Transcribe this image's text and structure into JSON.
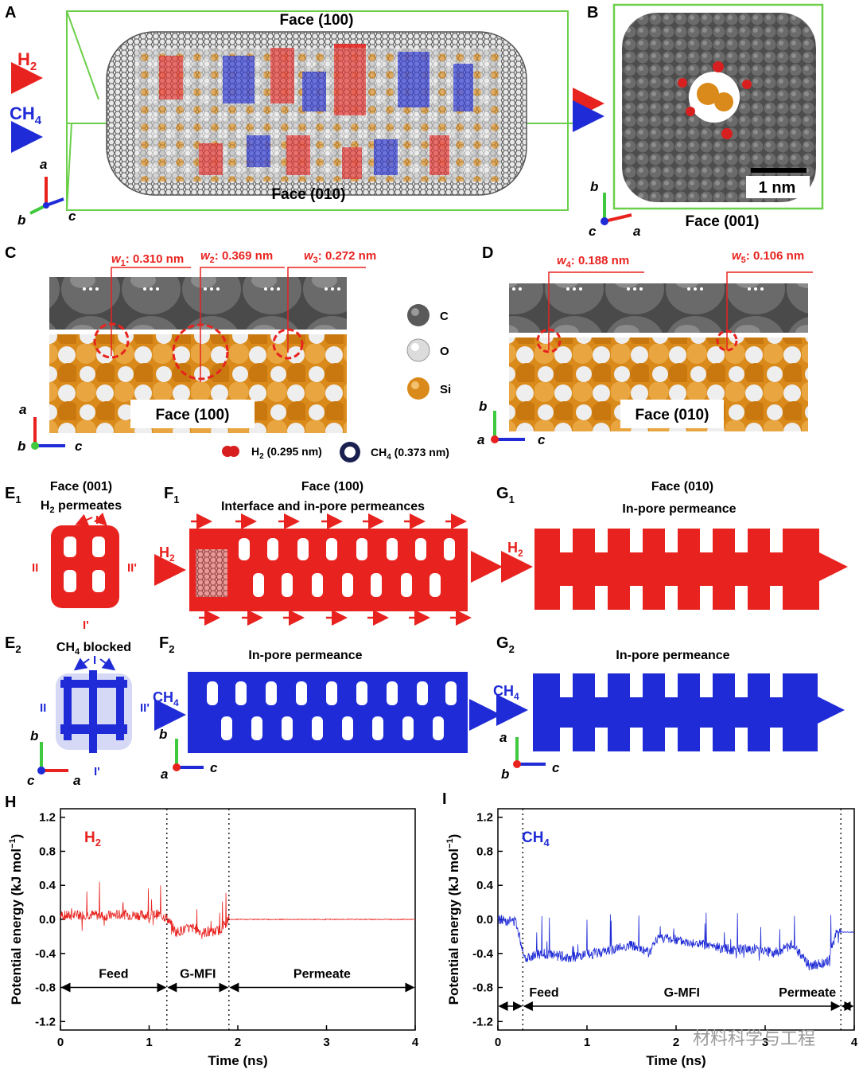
{
  "panels": {
    "A": "A",
    "B": "B",
    "C": "C",
    "D": "D",
    "E1": "E",
    "E1s": "1",
    "F1": "F",
    "F1s": "1",
    "G1": "G",
    "G1s": "1",
    "E2": "E",
    "E2s": "2",
    "F2": "F",
    "F2s": "2",
    "G2": "G",
    "G2s": "2",
    "H": "H",
    "I": "I"
  },
  "panelA": {
    "face_top": "Face (100)",
    "face_bottom": "Face (010)",
    "h2": "H",
    "h2_sub": "2",
    "ch4": "CH",
    "ch4_sub": "4",
    "axis_a": "a",
    "axis_b": "b",
    "axis_c": "c"
  },
  "panelB": {
    "scale": "1 nm",
    "face": "Face (001)",
    "axis_b": "b",
    "axis_c": "c",
    "axis_a": "a"
  },
  "panelC": {
    "w1_var": "w",
    "w1_sub": "1",
    "w1_val": ": 0.310 nm",
    "w2_var": "w",
    "w2_sub": "2",
    "w2_val": ": 0.369 nm",
    "w3_var": "w",
    "w3_sub": "3",
    "w3_val": ": 0.272 nm",
    "face": "Face (100)",
    "axis_a": "a",
    "axis_b": "b",
    "axis_c": "c"
  },
  "legend": {
    "c": "C",
    "o": "O",
    "si": "Si",
    "h2": "H",
    "h2_sub": "2",
    "h2_size": " (0.295 nm)",
    "ch4": "CH",
    "ch4_sub": "4",
    "ch4_size": " (0.373 nm)"
  },
  "panelD": {
    "w4_var": "w",
    "w4_sub": "4",
    "w4_val": ": 0.188 nm",
    "w5_var": "w",
    "w5_sub": "5",
    "w5_val": ": 0.106 nm",
    "face": "Face (010)",
    "axis_b": "b",
    "axis_a": "a",
    "axis_c": "c"
  },
  "panelE1": {
    "face": "Face (001)",
    "title": "H",
    "title_sub": "2",
    "title_rest": " permeates",
    "I": "I",
    "II": "II",
    "IIp": "II'",
    "Ip": "I'"
  },
  "panelF1": {
    "face": "Face (100)",
    "title": "Interface and in-pore permeances",
    "h2": "H",
    "h2_sub": "2"
  },
  "panelG1": {
    "face": "Face (010)",
    "title": "In-pore permeance",
    "h2": "H",
    "h2_sub": "2"
  },
  "panelE2": {
    "title": "CH",
    "title_sub": "4",
    "title_rest": " blocked",
    "I": "I",
    "II": "II",
    "IIp": "II'",
    "Ip": "I'",
    "axis_b": "b",
    "axis_c": "c",
    "axis_a": "a"
  },
  "panelF2": {
    "title": "In-pore permeance",
    "ch4": "CH",
    "ch4_sub": "4",
    "axis_b": "b",
    "axis_a": "a",
    "axis_c": "c"
  },
  "panelG2": {
    "title": "In-pore permeance",
    "ch4": "CH",
    "ch4_sub": "4",
    "axis_a": "a",
    "axis_b": "b",
    "axis_c": "c"
  },
  "watermark": "材料科学与工程",
  "colors": {
    "h2": "#e8231f",
    "ch4": "#1f2bd6",
    "graphene": "#5a5a5a",
    "si": "#d98a1a",
    "o": "#e8e8e8",
    "box": "#6ccf4a"
  },
  "chart_data": [
    {
      "type": "line",
      "panel": "H",
      "series": [
        {
          "name": "H2",
          "x": [
            0,
            0.1,
            0.2,
            0.3,
            0.4,
            0.5,
            0.6,
            0.7,
            0.8,
            0.9,
            1.0,
            1.1,
            1.2,
            1.3,
            1.4,
            1.5,
            1.6,
            1.7,
            1.8,
            1.9,
            2.0,
            2.5,
            2.7,
            3.0,
            3.5,
            4.0
          ],
          "y": [
            0.05,
            0.04,
            0.05,
            0.06,
            0.05,
            0.04,
            0.05,
            0.06,
            0.05,
            0.05,
            0.05,
            0.06,
            0.02,
            -0.15,
            -0.12,
            -0.1,
            -0.15,
            -0.16,
            -0.12,
            0.0,
            0.0,
            0.0,
            0.0,
            0.0,
            0.0,
            0.0
          ]
        }
      ],
      "label": "H",
      "label_sub": "2",
      "xlabel": "Time (ns)",
      "ylabel": "Potential energy (kJ mol",
      "ylabel_sup": "−1",
      "ylabel_end": ")",
      "xlim": [
        0,
        4
      ],
      "ylim": [
        -1.3,
        1.3
      ],
      "xticks": [
        0,
        1,
        2,
        3,
        4
      ],
      "yticks": [
        1.2,
        0.8,
        0.4,
        0.0,
        -0.4,
        -0.8,
        -1.2
      ],
      "xtick_labels": [
        "0",
        "1",
        "2",
        "3",
        "4"
      ],
      "ytick_labels": [
        "1.2",
        "0.8",
        "0.4",
        "0.0",
        "-0.4",
        "-0.8",
        "-1.2"
      ],
      "dividers": [
        1.2,
        1.9
      ],
      "regions": [
        {
          "label": "Feed",
          "from": 0,
          "to": 1.2
        },
        {
          "label": "G-MFI",
          "from": 1.2,
          "to": 1.9
        },
        {
          "label": "Permeate",
          "from": 1.9,
          "to": 4
        }
      ],
      "arrow_y": -0.8
    },
    {
      "type": "line",
      "panel": "I",
      "series": [
        {
          "name": "CH4",
          "x": [
            0,
            0.2,
            0.3,
            0.5,
            0.8,
            1.0,
            1.3,
            1.5,
            1.7,
            1.8,
            2.0,
            2.3,
            2.6,
            2.9,
            3.1,
            3.3,
            3.5,
            3.7,
            3.8
          ],
          "y": [
            0.0,
            -0.02,
            -0.45,
            -0.4,
            -0.45,
            -0.42,
            -0.35,
            -0.3,
            -0.4,
            -0.2,
            -0.25,
            -0.3,
            -0.35,
            -0.35,
            -0.4,
            -0.3,
            -0.55,
            -0.5,
            -0.15
          ]
        }
      ],
      "label": "CH",
      "label_sub": "4",
      "xlabel": "Time (ns)",
      "ylabel": "Potential energy (kJ mol",
      "ylabel_sup": "−1",
      "ylabel_end": ")",
      "xlim": [
        0,
        4
      ],
      "ylim": [
        -1.3,
        1.3
      ],
      "xticks": [
        0,
        1,
        2,
        3,
        4
      ],
      "yticks": [
        1.2,
        0.8,
        0.4,
        0.0,
        -0.4,
        -0.8,
        -1.2
      ],
      "xtick_labels": [
        "0",
        "1",
        "2",
        "3",
        "4"
      ],
      "ytick_labels": [
        "1.2",
        "0.8",
        "0.4",
        "0.0",
        "-0.4",
        "-0.8",
        "-1.2"
      ],
      "dividers": [
        0.28,
        3.85
      ],
      "regions": [
        {
          "label": "Feed",
          "from": 0,
          "to": 0.28
        },
        {
          "label": "G-MFI",
          "from": 0.28,
          "to": 3.85
        },
        {
          "label": "Permeate",
          "from": 3.85,
          "to": 4
        }
      ],
      "arrow_y": -1.02
    }
  ]
}
